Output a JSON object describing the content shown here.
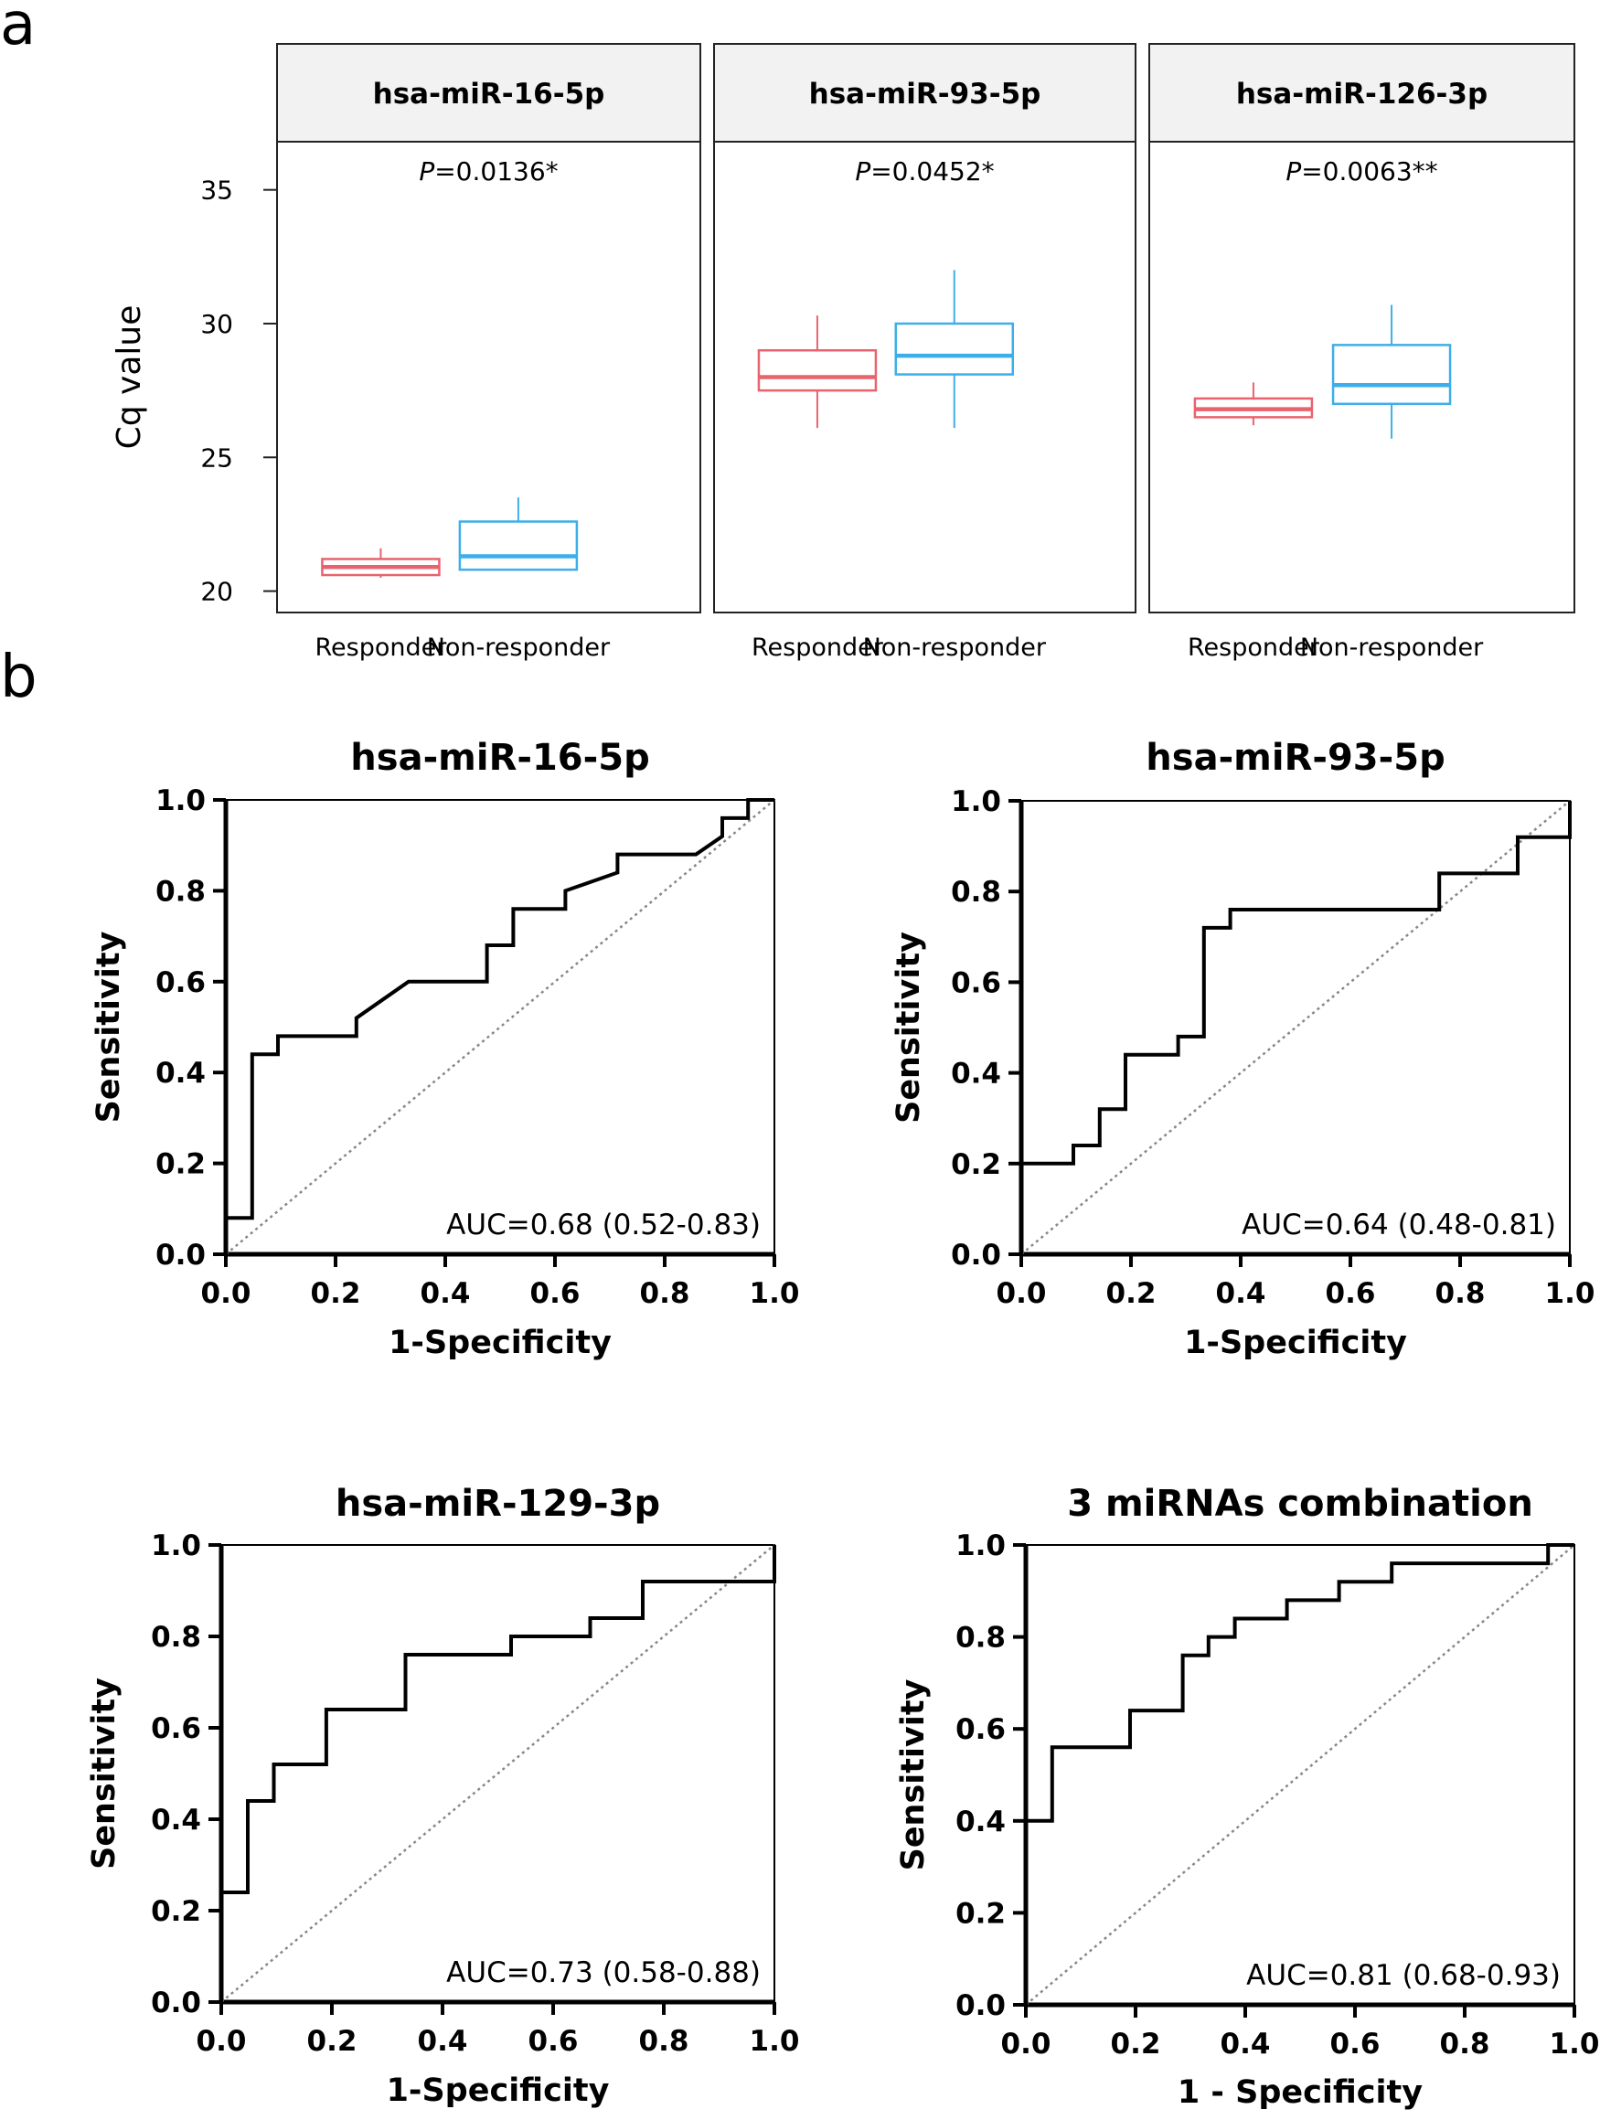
{
  "panel_labels": {
    "a": "a",
    "b": "b"
  },
  "colors": {
    "responder": "#e8636e",
    "non_responder": "#3daee9",
    "curve": "#000000",
    "diagonal": "#888888"
  },
  "chart_data": [
    {
      "type": "boxplot",
      "panel": "a",
      "ylabel": "Cq value",
      "ylim": [
        19.2,
        36.8
      ],
      "yticks": [
        20,
        25,
        30,
        35
      ],
      "categories": [
        "Responder",
        "Non-responder"
      ],
      "facets": [
        {
          "name": "hsa-miR-16-5p",
          "p_value": "=0.0136*",
          "boxes": [
            {
              "group": "Responder",
              "whisker_low": 20.5,
              "q1": 20.6,
              "median": 20.9,
              "q3": 21.2,
              "whisker_high": 21.6
            },
            {
              "group": "Non-responder",
              "whisker_low": 20.8,
              "q1": 20.8,
              "median": 21.3,
              "q3": 22.6,
              "whisker_high": 23.5
            }
          ]
        },
        {
          "name": "hsa-miR-93-5p",
          "p_value": "=0.0452*",
          "boxes": [
            {
              "group": "Responder",
              "whisker_low": 26.1,
              "q1": 27.5,
              "median": 28.0,
              "q3": 29.0,
              "whisker_high": 30.3
            },
            {
              "group": "Non-responder",
              "whisker_low": 26.1,
              "q1": 28.1,
              "median": 28.8,
              "q3": 30.0,
              "whisker_high": 32.0
            }
          ]
        },
        {
          "name": "hsa-miR-126-3p",
          "p_value": "=0.0063**",
          "boxes": [
            {
              "group": "Responder",
              "whisker_low": 26.2,
              "q1": 26.5,
              "median": 26.8,
              "q3": 27.2,
              "whisker_high": 27.8
            },
            {
              "group": "Non-responder",
              "whisker_low": 25.7,
              "q1": 27.0,
              "median": 27.7,
              "q3": 29.2,
              "whisker_high": 30.7
            }
          ]
        }
      ]
    },
    {
      "type": "line",
      "panel": "b",
      "title": "hsa-miR-16-5p",
      "xlabel": "1-Specificity",
      "ylabel": "Sensitivity",
      "auc": "AUC=0.68 (0.52-0.83)",
      "xlim": [
        0,
        1
      ],
      "ylim": [
        0,
        1
      ],
      "ticks": [
        "0.0",
        "0.2",
        "0.4",
        "0.6",
        "0.8",
        "1.0"
      ],
      "x": [
        0,
        0,
        0.048,
        0.048,
        0.095,
        0.095,
        0.238,
        0.238,
        0.333,
        0.476,
        0.476,
        0.524,
        0.524,
        0.619,
        0.619,
        0.714,
        0.714,
        0.857,
        0.905,
        0.905,
        0.952,
        0.952,
        1.0
      ],
      "y": [
        0,
        0.08,
        0.08,
        0.44,
        0.44,
        0.48,
        0.48,
        0.52,
        0.6,
        0.6,
        0.68,
        0.68,
        0.76,
        0.76,
        0.8,
        0.84,
        0.88,
        0.88,
        0.92,
        0.96,
        0.96,
        1.0,
        1.0
      ]
    },
    {
      "type": "line",
      "panel": "b",
      "title": "hsa-miR-93-5p",
      "xlabel": "1-Specificity",
      "ylabel": "Sensitivity",
      "auc": "AUC=0.64 (0.48-0.81)",
      "xlim": [
        0,
        1
      ],
      "ylim": [
        0,
        1
      ],
      "ticks": [
        "0.0",
        "0.2",
        "0.4",
        "0.6",
        "0.8",
        "1.0"
      ],
      "x": [
        0,
        0,
        0.095,
        0.095,
        0.143,
        0.143,
        0.19,
        0.19,
        0.286,
        0.286,
        0.333,
        0.333,
        0.381,
        0.381,
        0.762,
        0.762,
        0.905,
        0.905,
        1.0,
        1.0
      ],
      "y": [
        0,
        0.2,
        0.2,
        0.24,
        0.24,
        0.32,
        0.32,
        0.44,
        0.44,
        0.48,
        0.48,
        0.72,
        0.72,
        0.76,
        0.76,
        0.84,
        0.84,
        0.92,
        0.92,
        1.0
      ]
    },
    {
      "type": "line",
      "panel": "b",
      "title": "hsa-miR-129-3p",
      "xlabel": "1-Specificity",
      "ylabel": "Sensitivity",
      "auc": "AUC=0.73 (0.58-0.88)",
      "xlim": [
        0,
        1
      ],
      "ylim": [
        0,
        1
      ],
      "ticks": [
        "0.0",
        "0.2",
        "0.4",
        "0.6",
        "0.8",
        "1.0"
      ],
      "x": [
        0,
        0,
        0.048,
        0.048,
        0.095,
        0.095,
        0.19,
        0.19,
        0.333,
        0.333,
        0.524,
        0.524,
        0.667,
        0.667,
        0.762,
        0.762,
        1.0,
        1.0
      ],
      "y": [
        0,
        0.24,
        0.24,
        0.44,
        0.44,
        0.52,
        0.52,
        0.64,
        0.64,
        0.76,
        0.76,
        0.8,
        0.8,
        0.84,
        0.84,
        0.92,
        0.92,
        1.0
      ]
    },
    {
      "type": "line",
      "panel": "b",
      "title": "3 miRNAs combination",
      "xlabel": "1 - Specificity",
      "ylabel": "Sensitivity",
      "auc": "AUC=0.81 (0.68-0.93)",
      "xlim": [
        0,
        1
      ],
      "ylim": [
        0,
        1
      ],
      "ticks": [
        "0.0",
        "0.2",
        "0.4",
        "0.6",
        "0.8",
        "1.0"
      ],
      "x": [
        0,
        0,
        0.048,
        0.048,
        0.19,
        0.19,
        0.286,
        0.286,
        0.333,
        0.333,
        0.381,
        0.381,
        0.476,
        0.476,
        0.571,
        0.571,
        0.667,
        0.667,
        0.952,
        0.952,
        1.0
      ],
      "y": [
        0,
        0.4,
        0.4,
        0.56,
        0.56,
        0.64,
        0.64,
        0.76,
        0.76,
        0.8,
        0.8,
        0.84,
        0.84,
        0.88,
        0.88,
        0.92,
        0.92,
        0.96,
        0.96,
        1.0,
        1.0
      ]
    }
  ]
}
